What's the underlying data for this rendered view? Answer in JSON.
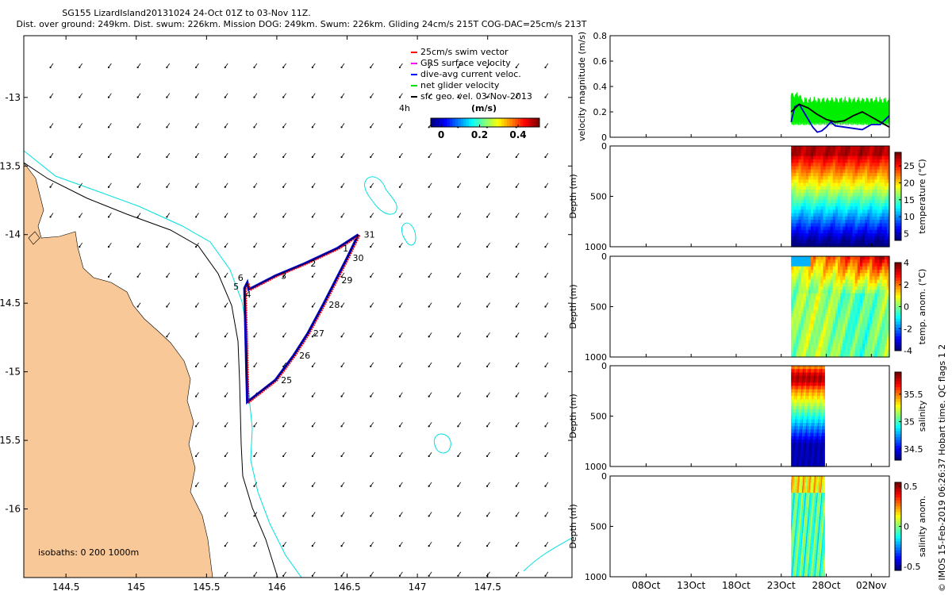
{
  "header": {
    "title_line1": "SG155 LizardIsland20131024 24-Oct 01Z to 03-Nov 11Z.",
    "title_line2": "Dist. over ground: 249km. Dist. swum: 226km. Mission DOG: 249km. Swum: 226km. Gliding 24cm/s 215T COG-DAC=25cm/s 213T"
  },
  "map": {
    "x_ticks": [
      "144.5",
      "145",
      "145.5",
      "146",
      "146.5",
      "147",
      "147.5"
    ],
    "x_values": [
      144.5,
      145,
      145.5,
      146,
      146.5,
      147,
      147.5
    ],
    "y_ticks": [
      "-13",
      "-13.5",
      "-14",
      "-14.5",
      "-15",
      "-15.5",
      "-16"
    ],
    "y_values": [
      -13,
      -13.5,
      -14,
      -14.5,
      -15,
      -15.5,
      -16
    ],
    "xlim": [
      144.2,
      148.1
    ],
    "ylim": [
      -16.5,
      -12.55
    ],
    "land_color": "#f8c898",
    "shelf_isobath_color": "#00e0e0",
    "isobath_note": "isobaths: 0   200  1000m",
    "legend": [
      {
        "label": "25cm/s swim vector",
        "color": "#ff0000"
      },
      {
        "label": "GRS surface velocity",
        "color": "#ff00ff"
      },
      {
        "label": "dive-avg current veloc.",
        "color": "#0000ff"
      },
      {
        "label": "net glider velocity",
        "color": "#00dd00"
      },
      {
        "label": "sfc geo. vel. 03-Nov-2013",
        "color": "#000000"
      }
    ],
    "arrow_scale_label": "4h",
    "colorbar": {
      "label": "(m/s)",
      "ticks": [
        "0",
        "0.2",
        "0.4"
      ]
    },
    "track_dives": [
      {
        "label": "31",
        "lon": 146.58,
        "lat": -14.0
      },
      {
        "label": "30",
        "lon": 146.5,
        "lat": -14.17
      },
      {
        "label": "29",
        "lon": 146.42,
        "lat": -14.33
      },
      {
        "label": "28",
        "lon": 146.33,
        "lat": -14.51
      },
      {
        "label": "27",
        "lon": 146.22,
        "lat": -14.72
      },
      {
        "label": "26",
        "lon": 146.12,
        "lat": -14.88
      },
      {
        "label": "25",
        "lon": 145.99,
        "lat": -15.06
      },
      {
        "label": "",
        "lon": 145.79,
        "lat": -15.22
      },
      {
        "label": "6",
        "lon": 145.79,
        "lat": -14.35
      },
      {
        "label": "5",
        "lon": 145.77,
        "lat": -14.39
      },
      {
        "label": "4",
        "lon": 145.8,
        "lat": -14.4
      },
      {
        "label": "3",
        "lon": 145.99,
        "lat": -14.3
      },
      {
        "label": "2",
        "lon": 146.2,
        "lat": -14.21
      },
      {
        "label": "1",
        "lon": 146.43,
        "lat": -14.1
      }
    ],
    "velocity_arrow_direction_deg": 215
  },
  "panels": {
    "time_ticks": [
      "08Oct",
      "13Oct",
      "18Oct",
      "23Oct",
      "28Oct",
      "02Nov"
    ],
    "time_tick_days": [
      8,
      13,
      18,
      23,
      28,
      33
    ],
    "time_range_days": [
      4,
      35
    ],
    "velocity": {
      "ylabel": "velocity magnitude (m/s)",
      "y_ticks": [
        "0",
        "0.2",
        "0.4",
        "0.6",
        "0.8"
      ],
      "y_values": [
        0,
        0.2,
        0.4,
        0.6,
        0.8
      ],
      "ylim": [
        0,
        0.8
      ],
      "series": [
        {
          "color": "#00ee00",
          "band_x": [
            24.1,
            35
          ],
          "band_low": 0.12,
          "band_high": 0.32
        },
        {
          "color": "#0000cc"
        },
        {
          "color": "#000000"
        }
      ],
      "blue_series": {
        "x": [
          24.1,
          24.5,
          25.0,
          25.5,
          26.0,
          26.5,
          27.0,
          27.5,
          28.0,
          28.5,
          29.0,
          30.0,
          31.0,
          32.0,
          33.0,
          34.0,
          35.0
        ],
        "y": [
          0.12,
          0.24,
          0.26,
          0.2,
          0.14,
          0.08,
          0.04,
          0.05,
          0.08,
          0.12,
          0.09,
          0.08,
          0.07,
          0.06,
          0.1,
          0.1,
          0.17
        ]
      },
      "black_series": {
        "x": [
          24.1,
          25.0,
          26.0,
          27.0,
          28.0,
          29.0,
          30.0,
          31.0,
          32.0,
          33.0,
          34.0,
          35.0
        ],
        "y": [
          0.2,
          0.26,
          0.23,
          0.18,
          0.14,
          0.12,
          0.13,
          0.17,
          0.2,
          0.16,
          0.12,
          0.08
        ]
      }
    },
    "temperature": {
      "ylabel": "Depth (m)",
      "cblabel": "temperature (°C)",
      "cb_ticks": [
        "25",
        "20",
        "15",
        "10",
        "5"
      ],
      "cb_values": [
        25,
        20,
        15,
        10,
        5
      ],
      "cb_range": [
        3,
        29
      ],
      "y_ticks": [
        "0",
        "500",
        "1000"
      ],
      "data_x": [
        24.1,
        35.0
      ]
    },
    "temp_anom": {
      "ylabel": "Depth (m)",
      "cblabel": "temp. anom. (°C)",
      "cb_ticks": [
        "4",
        "2",
        "0",
        "-2",
        "-4"
      ],
      "cb_values": [
        4,
        2,
        0,
        -2,
        -4
      ],
      "cb_range": [
        -4,
        4
      ],
      "y_ticks": [
        "0",
        "500",
        "1000"
      ],
      "data_x": [
        24.1,
        35.0
      ]
    },
    "salinity": {
      "ylabel": "Depth (m)",
      "cblabel": "salinity",
      "cb_ticks": [
        "35.5",
        "35",
        "34.5"
      ],
      "cb_values": [
        35.5,
        35,
        34.5
      ],
      "cb_range": [
        34.3,
        35.9
      ],
      "y_ticks": [
        "0",
        "500",
        "1000"
      ],
      "data_x": [
        24.1,
        27.8
      ]
    },
    "sal_anom": {
      "ylabel": "Depth (m)",
      "cblabel": "salinity anom.",
      "cb_ticks": [
        "0.5",
        "0",
        "-0.5"
      ],
      "cb_values": [
        0.5,
        0,
        -0.5
      ],
      "cb_range": [
        -0.55,
        0.55
      ],
      "y_ticks": [
        "0",
        "500",
        "1000"
      ],
      "data_x": [
        24.1,
        27.8
      ]
    }
  },
  "footer": {
    "credit": "© IMOS 15-Feb-2019 06:26:37 Hobart time. QC flags 1  2"
  }
}
